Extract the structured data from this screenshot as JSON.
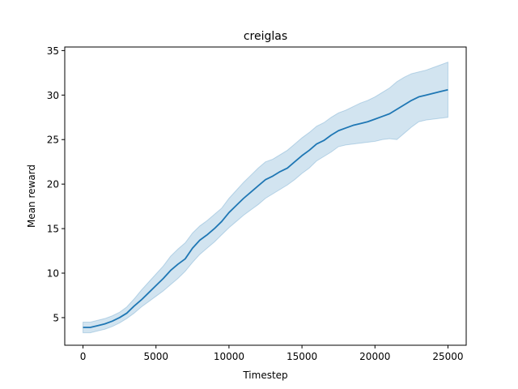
{
  "chart_data": {
    "type": "line",
    "title": "creiglas",
    "xlabel": "Timestep",
    "ylabel": "Mean reward",
    "xlim": [
      -1250,
      26250
    ],
    "ylim": [
      1.9,
      35.4
    ],
    "xticks": [
      0,
      5000,
      10000,
      15000,
      20000,
      25000
    ],
    "yticks": [
      5,
      10,
      15,
      20,
      25,
      30,
      35
    ],
    "grid": false,
    "legend": "none",
    "series": [
      {
        "color": "#1f77b4",
        "band_color": "#1f77b4",
        "band_opacity": 0.2,
        "x": [
          0,
          500,
          1000,
          1500,
          2000,
          2500,
          3000,
          3500,
          4000,
          4500,
          5000,
          5500,
          6000,
          6500,
          7000,
          7500,
          8000,
          8500,
          9000,
          9500,
          10000,
          10500,
          11000,
          11500,
          12000,
          12500,
          13000,
          13500,
          14000,
          14500,
          15000,
          15500,
          16000,
          16500,
          17000,
          17500,
          18000,
          18500,
          19000,
          19500,
          20000,
          20500,
          21000,
          21500,
          22000,
          22500,
          23000,
          23500,
          24000,
          24500,
          25000
        ],
        "y": [
          3.9,
          3.9,
          4.1,
          4.3,
          4.6,
          5.0,
          5.5,
          6.3,
          7.0,
          7.8,
          8.6,
          9.4,
          10.3,
          11.0,
          11.6,
          12.8,
          13.7,
          14.3,
          15.0,
          15.8,
          16.8,
          17.6,
          18.4,
          19.1,
          19.8,
          20.5,
          20.9,
          21.4,
          21.8,
          22.5,
          23.2,
          23.8,
          24.5,
          24.9,
          25.5,
          26.0,
          26.3,
          26.6,
          26.8,
          27.0,
          27.3,
          27.6,
          27.9,
          28.4,
          28.9,
          29.4,
          29.8,
          30.0,
          30.2,
          30.4,
          30.6
        ],
        "lower": [
          3.3,
          3.3,
          3.5,
          3.7,
          4.0,
          4.4,
          4.9,
          5.5,
          6.2,
          6.8,
          7.4,
          8.0,
          8.7,
          9.4,
          10.2,
          11.2,
          12.1,
          12.8,
          13.5,
          14.3,
          15.1,
          15.8,
          16.5,
          17.1,
          17.7,
          18.4,
          18.9,
          19.4,
          19.9,
          20.5,
          21.2,
          21.8,
          22.6,
          23.1,
          23.6,
          24.2,
          24.4,
          24.5,
          24.6,
          24.7,
          24.8,
          25.0,
          25.1,
          25.0,
          25.7,
          26.4,
          27.0,
          27.2,
          27.3,
          27.4,
          27.5
        ],
        "upper": [
          4.5,
          4.5,
          4.7,
          4.9,
          5.2,
          5.6,
          6.2,
          7.1,
          8.1,
          9.0,
          9.9,
          10.8,
          11.9,
          12.7,
          13.4,
          14.5,
          15.3,
          15.9,
          16.6,
          17.3,
          18.4,
          19.3,
          20.2,
          21.0,
          21.8,
          22.5,
          22.8,
          23.3,
          23.8,
          24.5,
          25.2,
          25.8,
          26.5,
          26.9,
          27.5,
          28.0,
          28.3,
          28.7,
          29.1,
          29.4,
          29.8,
          30.3,
          30.8,
          31.5,
          32.0,
          32.4,
          32.6,
          32.8,
          33.1,
          33.4,
          33.7
        ]
      }
    ]
  }
}
